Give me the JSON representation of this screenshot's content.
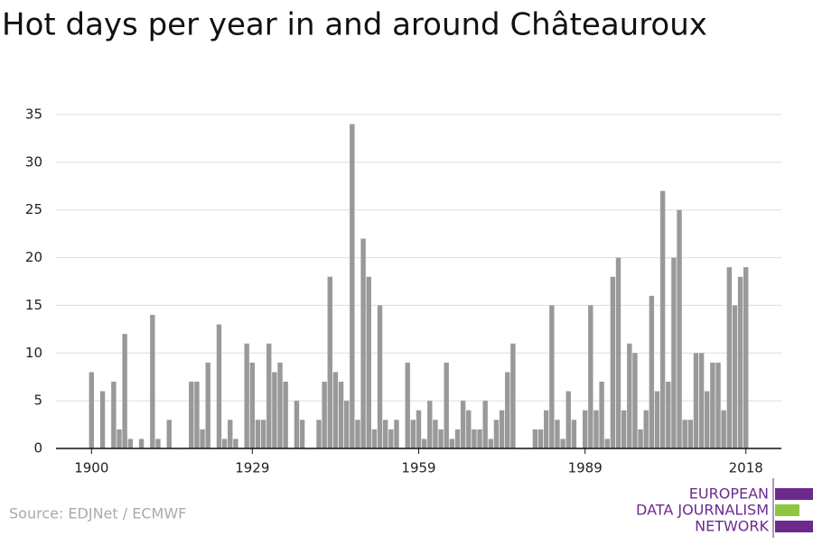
{
  "chart_data": {
    "type": "bar",
    "title": "Hot days per year in and around Châteauroux",
    "x": [
      1900,
      1902,
      1904,
      1905,
      1906,
      1907,
      1909,
      1911,
      1912,
      1914,
      1918,
      1919,
      1920,
      1921,
      1923,
      1924,
      1925,
      1926,
      1928,
      1929,
      1930,
      1931,
      1932,
      1933,
      1934,
      1935,
      1937,
      1938,
      1941,
      1942,
      1943,
      1944,
      1945,
      1946,
      1947,
      1948,
      1949,
      1950,
      1951,
      1952,
      1953,
      1954,
      1955,
      1957,
      1958,
      1959,
      1960,
      1961,
      1962,
      1963,
      1964,
      1965,
      1966,
      1967,
      1968,
      1969,
      1970,
      1971,
      1972,
      1973,
      1974,
      1975,
      1976,
      1980,
      1981,
      1982,
      1983,
      1984,
      1985,
      1986,
      1987,
      1989,
      1990,
      1991,
      1992,
      1993,
      1994,
      1995,
      1996,
      1997,
      1998,
      1999,
      2000,
      2001,
      2002,
      2003,
      2004,
      2005,
      2006,
      2007,
      2008,
      2009,
      2010,
      2011,
      2012,
      2013,
      2014,
      2015,
      2016,
      2017,
      2018
    ],
    "values": [
      8,
      6,
      7,
      2,
      12,
      1,
      1,
      14,
      1,
      3,
      7,
      7,
      2,
      9,
      13,
      1,
      3,
      1,
      11,
      9,
      3,
      3,
      11,
      8,
      9,
      7,
      5,
      3,
      3,
      7,
      18,
      8,
      7,
      5,
      34,
      3,
      22,
      18,
      2,
      15,
      3,
      2,
      3,
      9,
      3,
      4,
      1,
      5,
      3,
      2,
      9,
      1,
      2,
      5,
      4,
      2,
      2,
      5,
      1,
      3,
      4,
      8,
      11,
      2,
      2,
      4,
      15,
      3,
      1,
      6,
      3,
      4,
      15,
      4,
      7,
      1,
      18,
      20,
      4,
      11,
      10,
      2,
      4,
      16,
      6,
      27,
      7,
      20,
      25,
      3,
      3,
      10,
      10,
      6,
      9,
      9,
      4,
      19,
      15,
      18,
      19
    ],
    "color": "#999999",
    "xlim": [
      1893.6,
      2024.4
    ],
    "xticks": [
      1900,
      1929,
      1959,
      1989,
      2018
    ],
    "ylim": [
      0,
      35
    ],
    "yticks": [
      0,
      5,
      10,
      15,
      20,
      25,
      30,
      35
    ],
    "grid": true,
    "source": "Source: EDJNet / ECMWF"
  },
  "logo": {
    "lines": [
      "EUROPEAN",
      "DATA JOURNALISM",
      "NETWORK"
    ]
  }
}
